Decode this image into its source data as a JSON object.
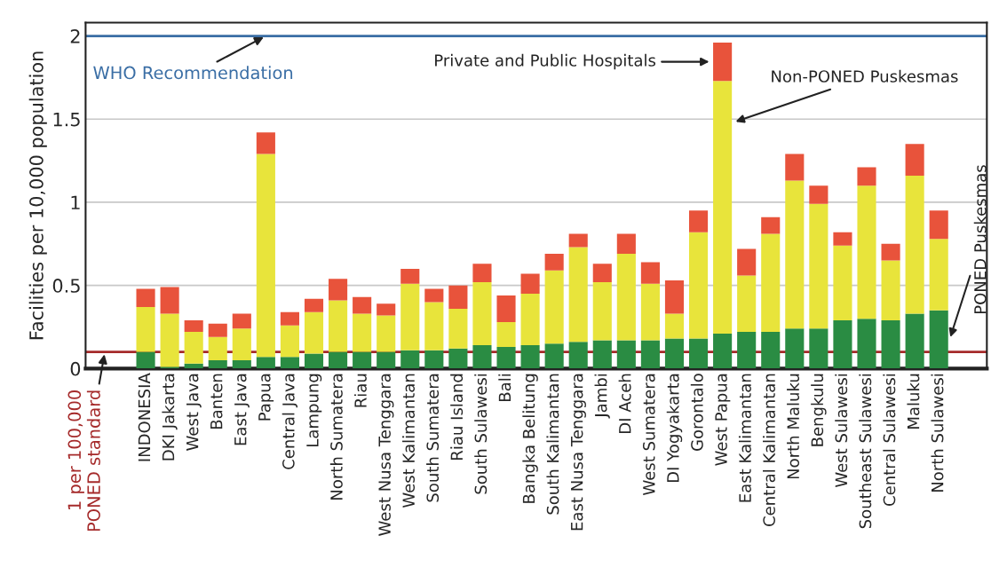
{
  "chart_data": {
    "type": "bar",
    "stacked": true,
    "ylabel": "Facilities per 10,000 population",
    "categories": [
      "INDONESIA",
      "DKI Jakarta",
      "West Java",
      "Banten",
      "East Java",
      "Papua",
      "Central Java",
      "Lampung",
      "North Sumatera",
      "Riau",
      "West Nusa Tenggara",
      "West Kalimantan",
      "South Sumatera",
      "Riau Island",
      "South Sulawesi",
      "Bali",
      "Bangka Belitung",
      "South Kalimantan",
      "East Nusa Tenggara",
      "Jambi",
      "DI Aceh",
      "West Sumatera",
      "DI Yogyakarta",
      "Gorontalo",
      "West Papua",
      "East Kalimantan",
      "Central Kalimantan",
      "North Maluku",
      "Bengkulu",
      "West Sulawesi",
      "Southeast Sulawesi",
      "Central Sulawesi",
      "Maluku",
      "North Sulawesi"
    ],
    "series": [
      {
        "name": "PONED Puskesmas",
        "color": "#2a8c43",
        "values": [
          0.1,
          0.01,
          0.03,
          0.05,
          0.05,
          0.07,
          0.07,
          0.09,
          0.1,
          0.1,
          0.1,
          0.11,
          0.11,
          0.12,
          0.14,
          0.13,
          0.14,
          0.15,
          0.16,
          0.17,
          0.17,
          0.17,
          0.18,
          0.18,
          0.21,
          0.22,
          0.22,
          0.24,
          0.24,
          0.29,
          0.3,
          0.29,
          0.33,
          0.35
        ]
      },
      {
        "name": "Non-PONED Puskesmas",
        "color": "#e8e43b",
        "values": [
          0.27,
          0.32,
          0.19,
          0.14,
          0.19,
          1.22,
          0.19,
          0.25,
          0.31,
          0.23,
          0.22,
          0.4,
          0.29,
          0.24,
          0.38,
          0.15,
          0.31,
          0.44,
          0.57,
          0.35,
          0.52,
          0.34,
          0.15,
          0.64,
          1.52,
          0.34,
          0.59,
          0.89,
          0.75,
          0.45,
          0.8,
          0.36,
          0.83,
          0.43
        ]
      },
      {
        "name": "Private and Public Hospitals",
        "color": "#e8533b",
        "values": [
          0.11,
          0.16,
          0.07,
          0.08,
          0.09,
          0.13,
          0.08,
          0.08,
          0.13,
          0.1,
          0.07,
          0.09,
          0.08,
          0.14,
          0.11,
          0.16,
          0.12,
          0.1,
          0.08,
          0.11,
          0.12,
          0.13,
          0.2,
          0.13,
          0.23,
          0.16,
          0.1,
          0.16,
          0.11,
          0.08,
          0.11,
          0.1,
          0.19,
          0.17
        ]
      }
    ],
    "ylim": [
      0,
      2.08
    ],
    "yticks": [
      0,
      0.5,
      1,
      1.5,
      2
    ],
    "grid": "y",
    "ref_lines": [
      {
        "axis": "y",
        "value": 2,
        "label": "WHO Recommendation",
        "color": "#3a6ea5"
      },
      {
        "axis": "y",
        "value": 0.1,
        "label": "1 per 100,000\nPONED standard",
        "color": "#a52a2a"
      }
    ]
  }
}
